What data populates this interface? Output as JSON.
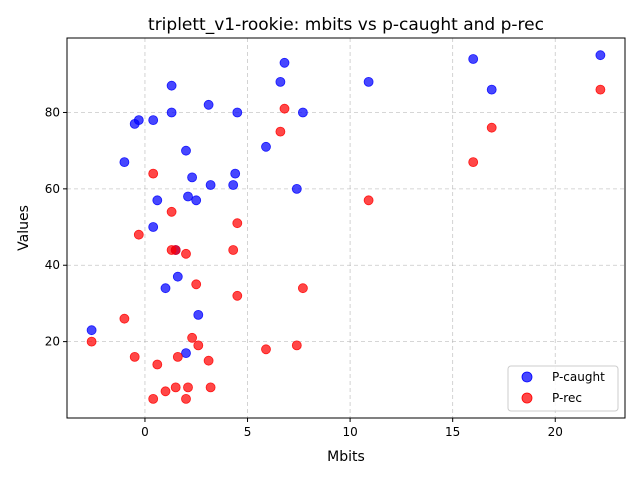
{
  "chart_data": {
    "type": "scatter",
    "title": "triplett_v1-rookie: mbits vs p-caught and p-rec",
    "xlabel": "Mbits",
    "ylabel": "Values",
    "xlim": [
      -3.8,
      23.4
    ],
    "ylim": [
      0,
      99.5
    ],
    "xticks": [
      0,
      5,
      10,
      15,
      20
    ],
    "yticks": [
      20,
      40,
      60,
      80
    ],
    "grid": true,
    "legend_position": "lower-right",
    "series": [
      {
        "name": "P-caught",
        "color": "#0000ff",
        "points": [
          [
            22.2,
            95
          ],
          [
            16.0,
            94
          ],
          [
            16.9,
            86
          ],
          [
            10.9,
            88
          ],
          [
            6.8,
            93
          ],
          [
            6.6,
            88
          ],
          [
            7.7,
            80
          ],
          [
            4.5,
            80
          ],
          [
            3.1,
            82
          ],
          [
            1.3,
            87
          ],
          [
            1.3,
            80
          ],
          [
            -0.3,
            78
          ],
          [
            -0.5,
            77
          ],
          [
            0.4,
            78
          ],
          [
            2.0,
            70
          ],
          [
            5.9,
            71
          ],
          [
            -1.0,
            67
          ],
          [
            2.3,
            63
          ],
          [
            4.4,
            64
          ],
          [
            3.2,
            61
          ],
          [
            4.3,
            61
          ],
          [
            7.4,
            60
          ],
          [
            2.1,
            58
          ],
          [
            2.5,
            57
          ],
          [
            0.6,
            57
          ],
          [
            0.4,
            50
          ],
          [
            1.5,
            44
          ],
          [
            1.6,
            37
          ],
          [
            1.0,
            34
          ],
          [
            2.6,
            27
          ],
          [
            -2.6,
            23
          ],
          [
            2.0,
            17
          ]
        ]
      },
      {
        "name": "P-rec",
        "color": "#ff0000",
        "points": [
          [
            22.2,
            86
          ],
          [
            16.9,
            76
          ],
          [
            16.0,
            67
          ],
          [
            10.9,
            57
          ],
          [
            6.8,
            81
          ],
          [
            6.6,
            75
          ],
          [
            0.4,
            64
          ],
          [
            1.3,
            54
          ],
          [
            4.5,
            51
          ],
          [
            -0.3,
            48
          ],
          [
            1.3,
            44
          ],
          [
            1.5,
            44
          ],
          [
            2.0,
            43
          ],
          [
            4.3,
            44
          ],
          [
            2.5,
            35
          ],
          [
            4.5,
            32
          ],
          [
            7.7,
            34
          ],
          [
            -1.0,
            26
          ],
          [
            -2.6,
            20
          ],
          [
            2.3,
            21
          ],
          [
            2.6,
            19
          ],
          [
            5.9,
            18
          ],
          [
            7.4,
            19
          ],
          [
            -0.5,
            16
          ],
          [
            1.6,
            16
          ],
          [
            3.1,
            15
          ],
          [
            0.6,
            14
          ],
          [
            1.5,
            8
          ],
          [
            2.1,
            8
          ],
          [
            3.2,
            8
          ],
          [
            1.0,
            7
          ],
          [
            0.4,
            5
          ],
          [
            2.0,
            5
          ]
        ]
      }
    ]
  }
}
